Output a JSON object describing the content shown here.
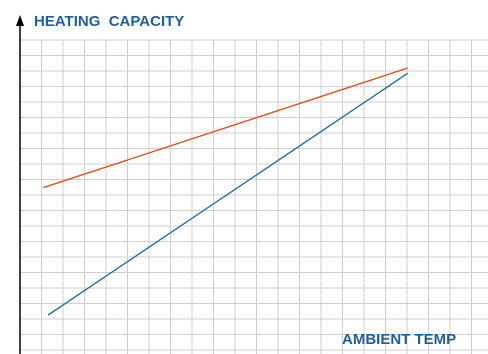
{
  "chart_data": {
    "type": "line",
    "title": "",
    "ylabel": "HEATING  CAPACITY",
    "xlabel": "AMBIENT TEMP",
    "grid": true,
    "x_ticks_labeled": false,
    "y_ticks_labeled": false,
    "xlim": [
      0,
      18
    ],
    "ylim": [
      0,
      12
    ],
    "series": [
      {
        "color": "#d9531e",
        "x": [
          1.0,
          16.5
        ],
        "y": [
          6.4,
          11.0
        ]
      },
      {
        "color": "#2a6fa0",
        "x": [
          1.2,
          16.5
        ],
        "y": [
          1.5,
          10.8
        ]
      }
    ]
  },
  "colors": {
    "grid": "#cfcfcf",
    "axis": "#000000",
    "label": "#1f5f9a"
  }
}
